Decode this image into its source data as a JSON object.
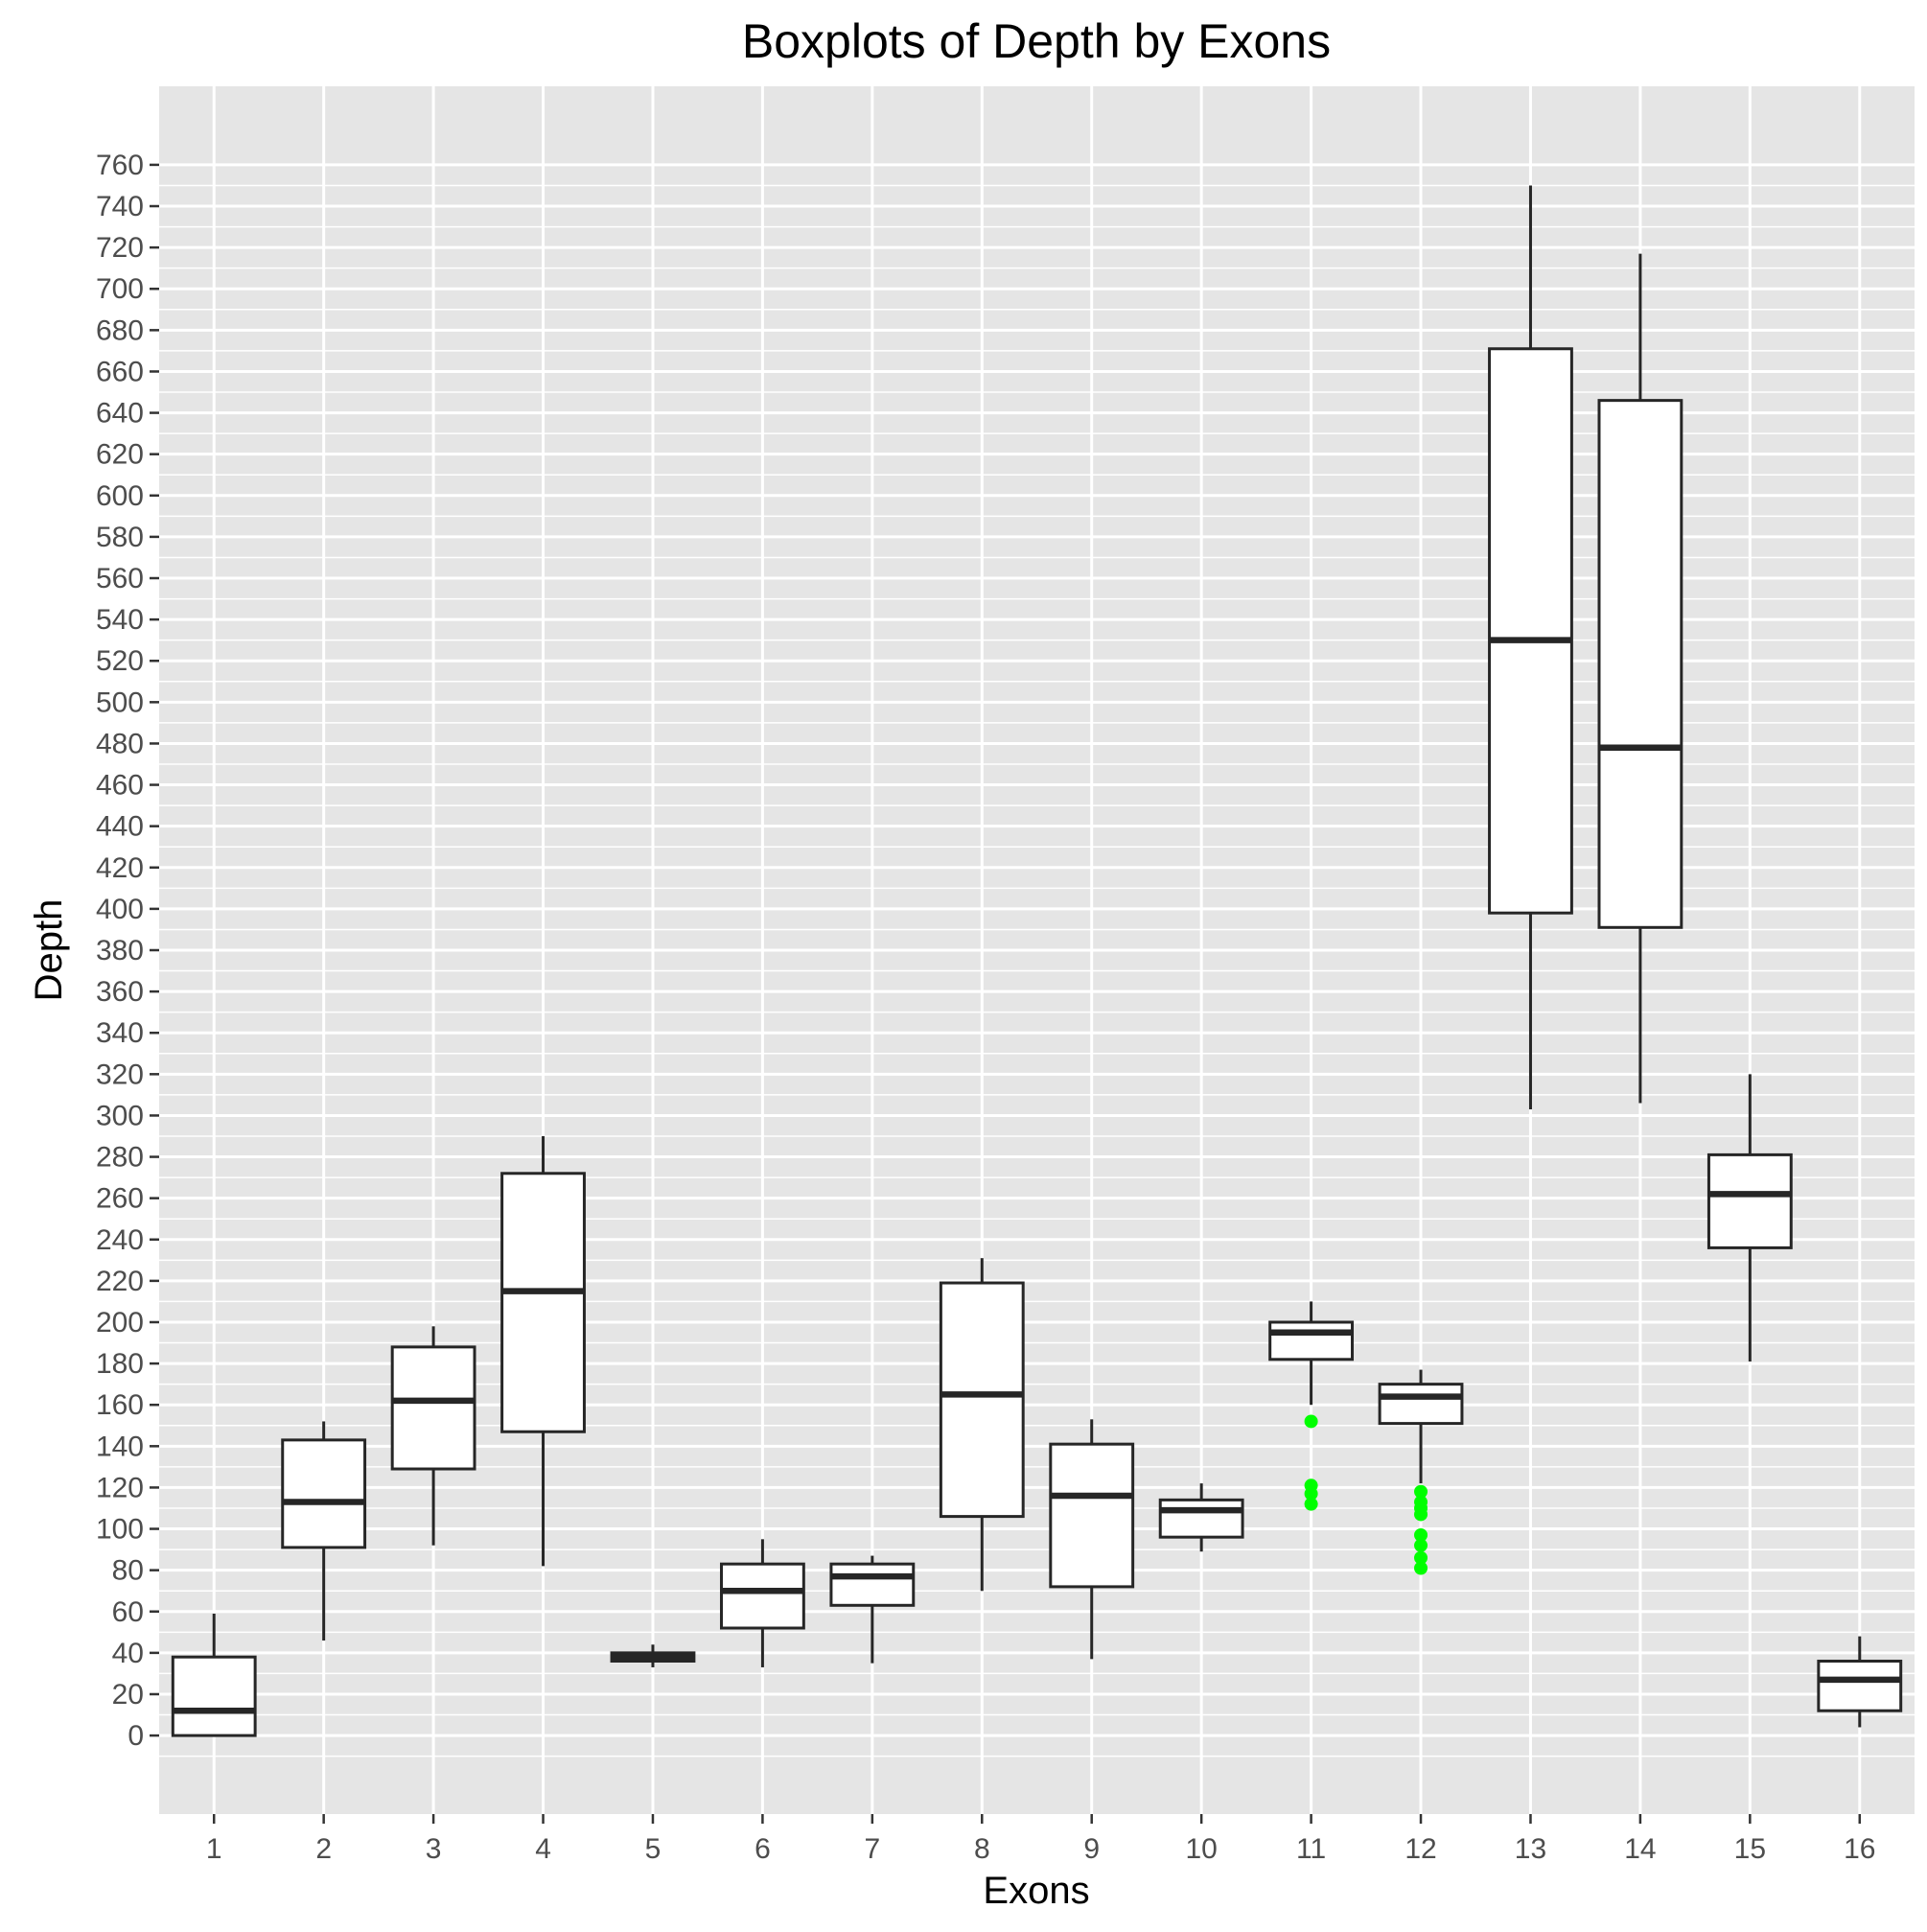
{
  "chart_data": {
    "type": "boxplot",
    "title": "Boxplots of Depth by Exons",
    "xlabel": "Exons",
    "ylabel": "Depth",
    "categories": [
      "1",
      "2",
      "3",
      "4",
      "5",
      "6",
      "7",
      "8",
      "9",
      "10",
      "11",
      "12",
      "13",
      "14",
      "15",
      "16"
    ],
    "ylim": [
      -38,
      798
    ],
    "yticks": [
      0,
      20,
      40,
      60,
      80,
      100,
      120,
      140,
      160,
      180,
      200,
      220,
      240,
      260,
      280,
      300,
      320,
      340,
      360,
      380,
      400,
      420,
      440,
      460,
      480,
      500,
      520,
      540,
      560,
      580,
      600,
      620,
      640,
      660,
      680,
      700,
      720,
      740,
      760
    ],
    "grid": true,
    "boxes": [
      {
        "category": "1",
        "whisker_low": 0,
        "q1": 0,
        "median": 12,
        "q3": 38,
        "whisker_high": 59,
        "outliers": []
      },
      {
        "category": "2",
        "whisker_low": 46,
        "q1": 91,
        "median": 113,
        "q3": 143,
        "whisker_high": 152,
        "outliers": []
      },
      {
        "category": "3",
        "whisker_low": 92,
        "q1": 129,
        "median": 162,
        "q3": 188,
        "whisker_high": 198,
        "outliers": []
      },
      {
        "category": "4",
        "whisker_low": 82,
        "q1": 147,
        "median": 215,
        "q3": 272,
        "whisker_high": 290,
        "outliers": []
      },
      {
        "category": "5",
        "whisker_low": 33,
        "q1": 36,
        "median": 38,
        "q3": 40,
        "whisker_high": 44,
        "outliers": []
      },
      {
        "category": "6",
        "whisker_low": 33,
        "q1": 52,
        "median": 70,
        "q3": 83,
        "whisker_high": 95,
        "outliers": []
      },
      {
        "category": "7",
        "whisker_low": 35,
        "q1": 63,
        "median": 77,
        "q3": 83,
        "whisker_high": 87,
        "outliers": []
      },
      {
        "category": "8",
        "whisker_low": 70,
        "q1": 106,
        "median": 165,
        "q3": 219,
        "whisker_high": 231,
        "outliers": []
      },
      {
        "category": "9",
        "whisker_low": 37,
        "q1": 72,
        "median": 116,
        "q3": 141,
        "whisker_high": 153,
        "outliers": []
      },
      {
        "category": "10",
        "whisker_low": 89,
        "q1": 96,
        "median": 109,
        "q3": 114,
        "whisker_high": 122,
        "outliers": []
      },
      {
        "category": "11",
        "whisker_low": 160,
        "q1": 182,
        "median": 195,
        "q3": 200,
        "whisker_high": 210,
        "outliers": [
          152,
          121,
          117,
          112
        ]
      },
      {
        "category": "12",
        "whisker_low": 122,
        "q1": 151,
        "median": 164,
        "q3": 170,
        "whisker_high": 177,
        "outliers": [
          118,
          113,
          110,
          107,
          97,
          92,
          86,
          81
        ]
      },
      {
        "category": "13",
        "whisker_low": 303,
        "q1": 398,
        "median": 530,
        "q3": 671,
        "whisker_high": 750,
        "outliers": []
      },
      {
        "category": "14",
        "whisker_low": 306,
        "q1": 391,
        "median": 478,
        "q3": 646,
        "whisker_high": 717,
        "outliers": []
      },
      {
        "category": "15",
        "whisker_low": 181,
        "q1": 236,
        "median": 262,
        "q3": 281,
        "whisker_high": 320,
        "outliers": []
      },
      {
        "category": "16",
        "whisker_low": 4,
        "q1": 12,
        "median": 27,
        "q3": 36,
        "whisker_high": 48,
        "outliers": []
      }
    ],
    "colors": {
      "panel_background": "#e5e5e5",
      "grid": "#ffffff",
      "box_fill": "#ffffff",
      "box_stroke": "#262626",
      "outlier": "#00ff00"
    }
  }
}
